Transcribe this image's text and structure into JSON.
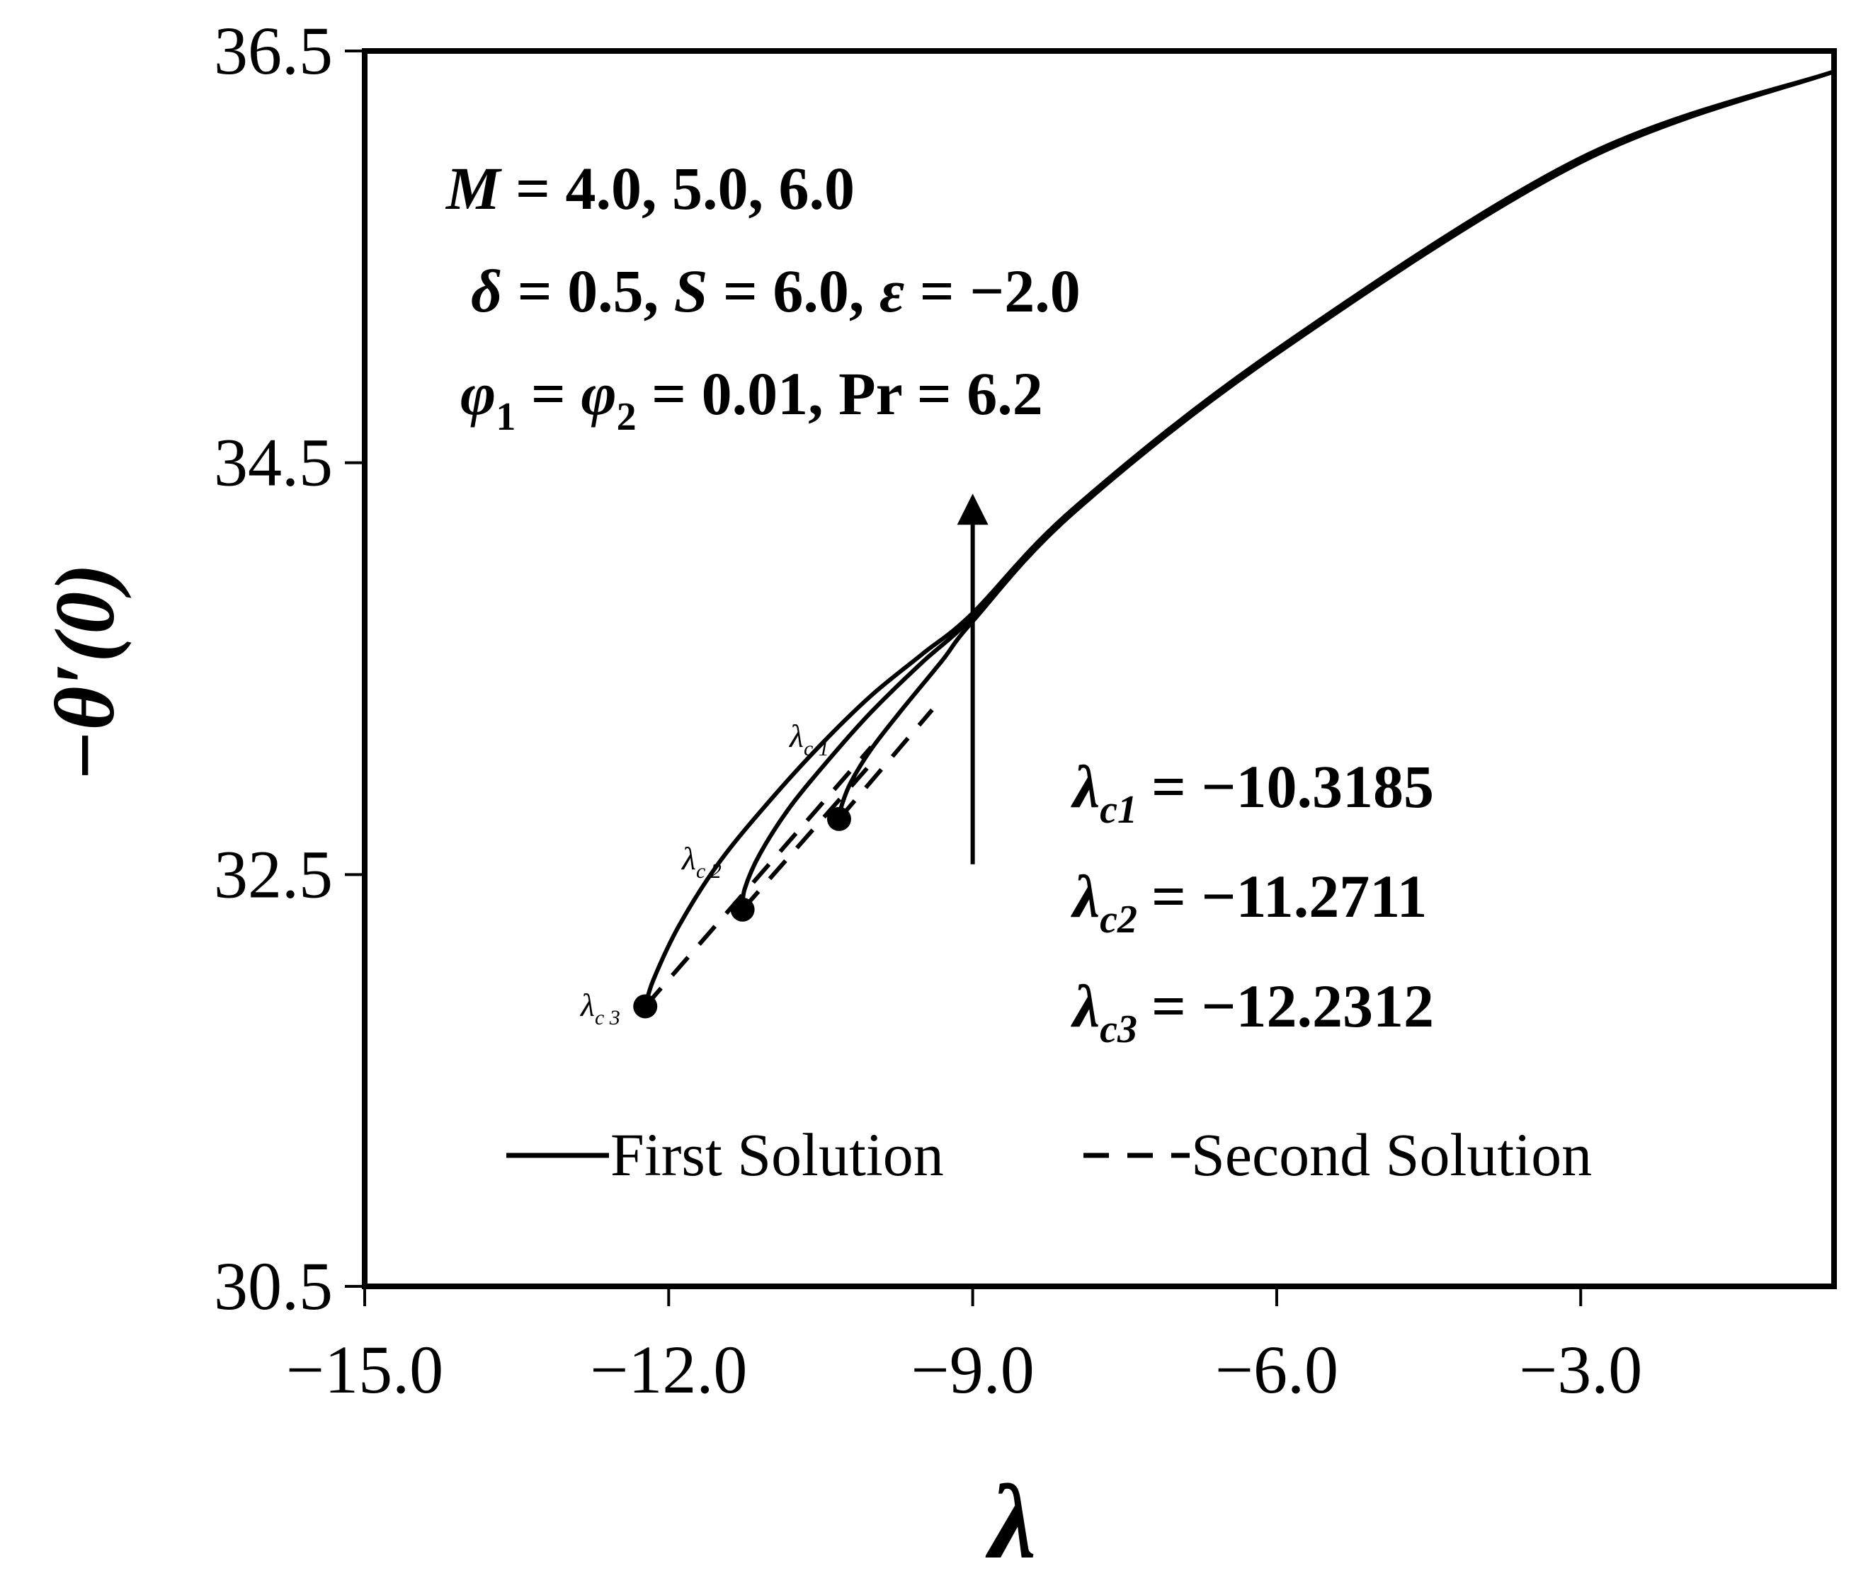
{
  "chart_data": {
    "type": "line",
    "xlabel": "λ",
    "ylabel": "−θ′(0)",
    "xlim": [
      -15.0,
      -0.5
    ],
    "ylim": [
      30.5,
      36.5
    ],
    "xticks": [
      -15.0,
      -12.0,
      -9.0,
      -6.0,
      -3.0
    ],
    "xtick_labels": [
      "−15.0",
      "−12.0",
      "−9.0",
      "−6.0",
      "−3.0"
    ],
    "yticks": [
      30.5,
      32.5,
      34.5,
      36.5
    ],
    "ytick_labels": [
      "30.5",
      "32.5",
      "34.5",
      "36.5"
    ],
    "grid": false,
    "legend_placement": "bottom",
    "legend": [
      {
        "label": "First Solution",
        "style": "solid"
      },
      {
        "label": "Second Solution",
        "style": "dashed"
      }
    ],
    "parameters": [
      {
        "lhs": "M",
        "rhs": " = 4.0, 5.0, 6.0"
      },
      {
        "lhs": "δ",
        "rhs": " = 0.5, ",
        "lhs2": "S",
        "rhs2": " = 6.0, ",
        "lhs3": "ε",
        "rhs3": " = −2.0"
      },
      {
        "lhs": "φ",
        "sub": "1",
        "rhs": " = ",
        "lhs2": "φ",
        "sub2": "2",
        "rhs2": " = 0.01, Pr = 6.2"
      }
    ],
    "critical_values": [
      {
        "symbol": "λ",
        "sub": "c1",
        "value": "= −10.3185"
      },
      {
        "symbol": "λ",
        "sub": "c2",
        "value": "= −11.2711"
      },
      {
        "symbol": "λ",
        "sub": "c3",
        "value": "= −12.2312"
      }
    ],
    "point_labels": [
      {
        "symbol": "λ",
        "sub": "c 1"
      },
      {
        "symbol": "λ",
        "sub": "c 2"
      },
      {
        "symbol": "λ",
        "sub": "c 3"
      }
    ],
    "arrow": {
      "x": -9.0,
      "from_y": 32.55,
      "to_y": 34.35
    },
    "series": [
      {
        "style": "solid",
        "points": [
          [
            -10.3185,
            32.77
          ],
          [
            -10.29,
            32.84
          ],
          [
            -10.2,
            32.95
          ],
          [
            -10.0,
            33.11
          ],
          [
            -9.7,
            33.3
          ],
          [
            -9.3,
            33.54
          ],
          [
            -9.0,
            33.73
          ],
          [
            -8.0,
            34.26
          ],
          [
            -6.0,
            35.03
          ],
          [
            -3.0,
            35.96
          ],
          [
            -0.5,
            36.4
          ]
        ]
      },
      {
        "style": "solid",
        "points": [
          [
            -11.2711,
            32.33
          ],
          [
            -11.25,
            32.43
          ],
          [
            -11.1,
            32.6
          ],
          [
            -10.8,
            32.83
          ],
          [
            -10.4,
            33.07
          ],
          [
            -10.0,
            33.29
          ],
          [
            -9.5,
            33.53
          ],
          [
            -9.0,
            33.75
          ],
          [
            -8.0,
            34.27
          ],
          [
            -6.0,
            35.04
          ],
          [
            -3.0,
            35.97
          ],
          [
            -0.5,
            36.4
          ]
        ]
      },
      {
        "style": "solid",
        "points": [
          [
            -12.2312,
            31.86
          ],
          [
            -12.15,
            31.99
          ],
          [
            -11.9,
            32.25
          ],
          [
            -11.5,
            32.56
          ],
          [
            -11.0,
            32.86
          ],
          [
            -10.5,
            33.13
          ],
          [
            -10.0,
            33.37
          ],
          [
            -9.5,
            33.57
          ],
          [
            -9.0,
            33.77
          ],
          [
            -8.0,
            34.28
          ],
          [
            -6.0,
            35.05
          ],
          [
            -3.0,
            35.98
          ],
          [
            -0.5,
            36.4
          ]
        ]
      },
      {
        "style": "dashed",
        "points": [
          [
            -10.3185,
            32.77
          ],
          [
            -9.4,
            33.3
          ]
        ]
      },
      {
        "style": "dashed",
        "points": [
          [
            -11.2711,
            32.33
          ],
          [
            -10.0,
            33.04
          ]
        ]
      },
      {
        "style": "dashed",
        "points": [
          [
            -12.2312,
            31.86
          ],
          [
            -10.0,
            33.12
          ]
        ]
      }
    ],
    "critical_points": [
      {
        "x": -10.3185,
        "y": 32.77
      },
      {
        "x": -11.2711,
        "y": 32.33
      },
      {
        "x": -12.2312,
        "y": 31.86
      }
    ]
  }
}
